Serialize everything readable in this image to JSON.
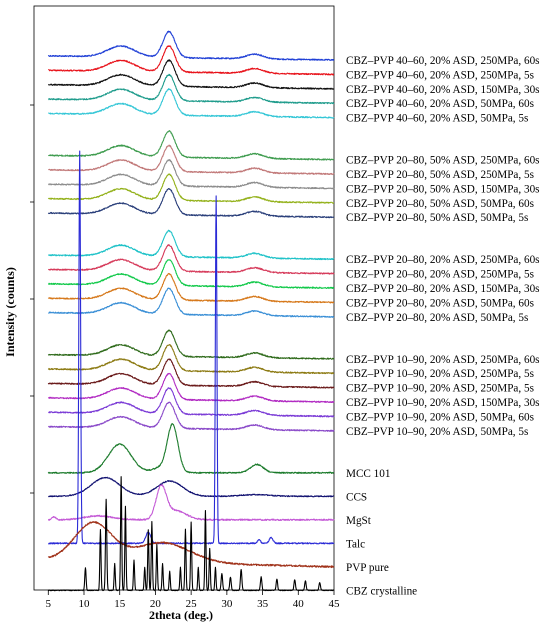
{
  "chart_data": {
    "type": "line",
    "xlabel": "2theta (deg.)",
    "ylabel": "Intensity (counts)",
    "xlim": [
      3,
      45
    ],
    "x_ticks": [
      5,
      10,
      15,
      20,
      25,
      30,
      35,
      40,
      45
    ],
    "y_ticks_labeled": false,
    "grid": false,
    "legend_placement": "right, labels next to each trace",
    "series": [
      {
        "name": "CBZ–PVP 40–60, 20% ASD, 250MPa, 60s",
        "color": "#1f3fd6",
        "kind": "asd",
        "gap": 0
      },
      {
        "name": "CBZ–PVP 40–60, 20% ASD, 250MPa, 5s",
        "color": "#e8121a",
        "kind": "asd",
        "gap": 0
      },
      {
        "name": "CBZ–PVP 40–60, 20% ASD, 150MPa, 30s",
        "color": "#111111",
        "kind": "asd",
        "gap": 0
      },
      {
        "name": "CBZ–PVP 40–60, 20% ASD, 50MPa, 60s",
        "color": "#1f9c8c",
        "kind": "asd",
        "gap": 0
      },
      {
        "name": "CBZ–PVP 40–60, 20% ASD, 50MPa, 5s",
        "color": "#33c6d6",
        "kind": "asd",
        "gap": 0
      },
      {
        "name": "CBZ–PVP 20–80, 50% ASD, 250MPa, 60s",
        "color": "#3f9c4f",
        "kind": "asd",
        "gap": 1
      },
      {
        "name": "CBZ–PVP 20–80, 50% ASD, 250MPa, 5s",
        "color": "#c27a7a",
        "kind": "asd",
        "gap": 1
      },
      {
        "name": "CBZ–PVP 20–80, 50% ASD, 150MPa, 30s",
        "color": "#8c8c8c",
        "kind": "asd",
        "gap": 1
      },
      {
        "name": "CBZ–PVP 20–80, 50% ASD, 50MPa, 60s",
        "color": "#93b11a",
        "kind": "asd",
        "gap": 1
      },
      {
        "name": "CBZ–PVP 20–80, 50% ASD, 50MPa, 5s",
        "color": "#2a3f7a",
        "kind": "asd",
        "gap": 1
      },
      {
        "name": "CBZ–PVP 20–80, 20% ASD, 250MPa, 60s",
        "color": "#1fc2c8",
        "kind": "asd",
        "gap": 2
      },
      {
        "name": "CBZ–PVP 20–80, 20% ASD, 250MPa, 5s",
        "color": "#d63a5a",
        "kind": "asd",
        "gap": 2
      },
      {
        "name": "CBZ–PVP 20–80, 20% ASD, 150MPa, 30s",
        "color": "#12c94a",
        "kind": "asd",
        "gap": 2
      },
      {
        "name": "CBZ–PVP 20–80, 20% ASD, 50MPa, 60s",
        "color": "#d6781a",
        "kind": "asd",
        "gap": 2
      },
      {
        "name": "CBZ–PVP 20–80, 20% ASD, 50MPa, 5s",
        "color": "#3a8fd6",
        "kind": "asd",
        "gap": 2
      },
      {
        "name": "CBZ–PVP 10–90, 20% ASD, 250MPa, 60s",
        "color": "#2e6a1a",
        "kind": "asd",
        "gap": 3
      },
      {
        "name": "CBZ–PVP 10–90, 20% ASD, 250MPa, 5s",
        "color": "#8c7a12",
        "kind": "asd",
        "gap": 3
      },
      {
        "name": "CBZ–PVP 10–90, 20% ASD, 250MPa, 5s",
        "color": "#6a1a1a",
        "kind": "asd",
        "gap": 3
      },
      {
        "name": "CBZ–PVP 10–90, 20% ASD, 150MPa, 30s",
        "color": "#b12ac2",
        "kind": "asd",
        "gap": 3
      },
      {
        "name": "CBZ–PVP 10–90, 20% ASD, 50MPa, 60s",
        "color": "#7a3ad6",
        "kind": "asd",
        "gap": 3
      },
      {
        "name": "CBZ–PVP 10–90, 20% ASD, 50MPa, 5s",
        "color": "#8a4ac9",
        "kind": "asd",
        "gap": 3
      },
      {
        "name": "MCC 101",
        "color": "#1a7a2a",
        "kind": "mcc",
        "gap": 4
      },
      {
        "name": "CCS",
        "color": "#101070",
        "kind": "ccs",
        "gap": 4
      },
      {
        "name": "MgSt",
        "color": "#c45ad6",
        "kind": "mgst",
        "gap": 4
      },
      {
        "name": "Talc",
        "color": "#2a2ad6",
        "kind": "talc",
        "gap": 4
      },
      {
        "name": "PVP pure",
        "color": "#a0321a",
        "kind": "pvp",
        "gap": 4
      },
      {
        "name": "CBZ crystalline",
        "color": "#000000",
        "kind": "cbz",
        "gap": 4
      }
    ]
  }
}
